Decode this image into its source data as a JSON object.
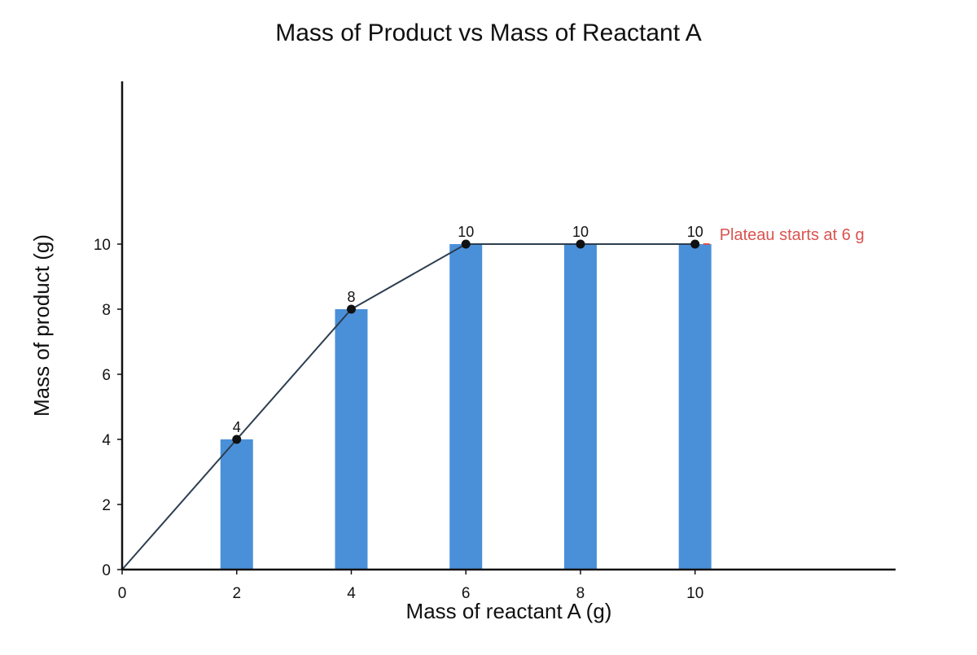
{
  "chart_data": {
    "type": "bar",
    "title": "Mass of Product vs Mass of Reactant A",
    "xlabel": "Mass of reactant A (g)",
    "ylabel": "Mass of product (g)",
    "x": [
      2,
      4,
      6,
      8,
      10
    ],
    "values": [
      4,
      8,
      10,
      10,
      10
    ],
    "data_labels": [
      "4",
      "8",
      "10",
      "10",
      "10"
    ],
    "line": {
      "x": [
        0,
        2,
        4,
        6,
        8,
        10
      ],
      "y": [
        0,
        4,
        8,
        10,
        10,
        10
      ]
    },
    "xlim": [
      0,
      13.5
    ],
    "ylim": [
      0,
      15
    ],
    "x_ticks": [
      0,
      2,
      4,
      6,
      8,
      10
    ],
    "x_tick_labels": [
      "0",
      "2",
      "4",
      "6",
      "8",
      "10"
    ],
    "y_ticks": [
      0,
      2,
      4,
      6,
      8,
      10
    ],
    "y_tick_labels": [
      "0",
      "2",
      "4",
      "6",
      "8",
      "10"
    ],
    "grid": false,
    "legend": "none",
    "annotation": {
      "text": "Plateau starts at 6 g",
      "x": 10,
      "y": 10,
      "color": "#d9534f"
    },
    "colors": {
      "bar": "#4a90d9",
      "line": "#2c3e50",
      "marker": "#111111",
      "axis": "#111111"
    }
  }
}
